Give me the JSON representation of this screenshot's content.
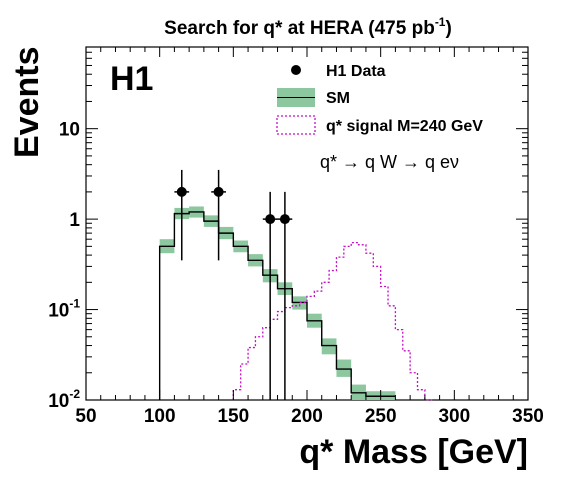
{
  "chart_data": {
    "type": "histogram",
    "title": "Search for q* at HERA (475 pb",
    "title_sup": "-1",
    "title_close": ")",
    "experiment_label": "H1",
    "xlabel": "q* Mass [GeV]",
    "ylabel": "Events",
    "xlim": [
      50,
      350
    ],
    "ylim": [
      0.01,
      80
    ],
    "yscale": "log",
    "x_ticks": [
      "50",
      "100",
      "150",
      "200",
      "250",
      "300",
      "350"
    ],
    "y_ticks": [
      {
        "base": "10",
        "exp": "-2"
      },
      {
        "base": "10",
        "exp": "-1"
      },
      {
        "base": "1",
        "exp": ""
      },
      {
        "base": "10",
        "exp": ""
      }
    ],
    "annotation": "q* → q W → q eν",
    "legend_position": "top-right",
    "legend": {
      "data": "H1 Data",
      "sm": "SM",
      "signal": "q* signal M=240 GeV"
    },
    "colors": {
      "sm_band": "#8cc7a0",
      "signal": "#c40fc4",
      "data": "#000000",
      "sm_line": "#000000"
    },
    "series": [
      {
        "name": "SM",
        "bin_edges": [
          100,
          110,
          120,
          130,
          140,
          150,
          160,
          170,
          180,
          190,
          200,
          210,
          220,
          230,
          240,
          250,
          260
        ],
        "values": [
          0.5,
          1.15,
          1.2,
          0.95,
          0.7,
          0.5,
          0.35,
          0.24,
          0.17,
          0.12,
          0.075,
          0.04,
          0.022,
          0.012,
          0.011,
          0.011
        ],
        "band_low": [
          0.42,
          1.0,
          1.04,
          0.82,
          0.6,
          0.43,
          0.3,
          0.2,
          0.145,
          0.1,
          0.063,
          0.032,
          0.018,
          0.0097,
          0.009,
          0.009
        ],
        "band_high": [
          0.6,
          1.33,
          1.38,
          1.1,
          0.82,
          0.58,
          0.41,
          0.28,
          0.2,
          0.14,
          0.09,
          0.048,
          0.028,
          0.0148,
          0.0125,
          0.0125
        ]
      },
      {
        "name": "q* signal M=240 GeV",
        "bin_edges": [
          150,
          155,
          160,
          165,
          170,
          175,
          180,
          185,
          190,
          195,
          200,
          205,
          210,
          215,
          220,
          225,
          230,
          235,
          240,
          245,
          250,
          255,
          260,
          265,
          270,
          275,
          280,
          285
        ],
        "values": [
          0.013,
          0.025,
          0.038,
          0.05,
          0.063,
          0.078,
          0.095,
          0.105,
          0.11,
          0.12,
          0.14,
          0.16,
          0.2,
          0.27,
          0.38,
          0.5,
          0.55,
          0.52,
          0.42,
          0.3,
          0.18,
          0.11,
          0.06,
          0.035,
          0.02,
          0.013,
          0.01
        ]
      },
      {
        "name": "H1 Data",
        "points": [
          {
            "x": 115,
            "y": 2,
            "xerr": 5,
            "yerr_low": 1.65,
            "yerr_high": 1.5
          },
          {
            "x": 140,
            "y": 2,
            "xerr": 5,
            "yerr_low": 1.65,
            "yerr_high": 1.5
          },
          {
            "x": 175,
            "y": 1,
            "xerr": 5,
            "yerr_low": 0.99,
            "yerr_high": 1.0
          },
          {
            "x": 185,
            "y": 1,
            "xerr": 5,
            "yerr_low": 0.99,
            "yerr_high": 1.0
          }
        ]
      }
    ]
  }
}
